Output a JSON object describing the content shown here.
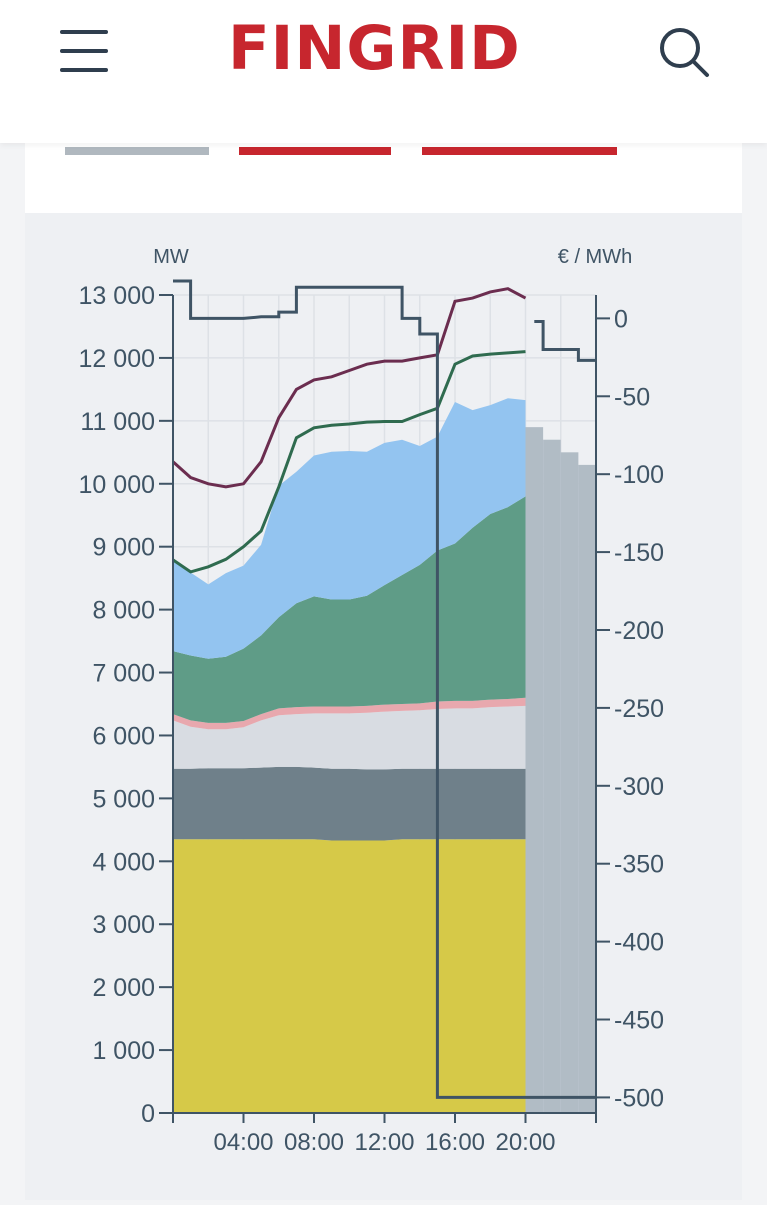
{
  "header": {
    "logo": "FINGRID",
    "menu_icon": "hamburger-menu-icon",
    "search_icon": "search-icon",
    "brand_color": "#c7262e"
  },
  "tabs": [
    {
      "color": "#b0b8bf"
    },
    {
      "color": "#c7262e"
    },
    {
      "color": "#c7262e"
    }
  ],
  "chart_data": {
    "type": "area",
    "left_axis_label": "MW",
    "right_axis_label": "€ / MWh",
    "ylim_left": [
      0,
      13000
    ],
    "ylim_right": [
      -510,
      15
    ],
    "yticks_left": [
      0,
      1000,
      2000,
      3000,
      4000,
      5000,
      6000,
      7000,
      8000,
      9000,
      10000,
      11000,
      12000,
      13000
    ],
    "yticks_left_labels": [
      "0",
      "1 000",
      "2 000",
      "3 000",
      "4 000",
      "5 000",
      "6 000",
      "7 000",
      "8 000",
      "9 000",
      "10 000",
      "11 000",
      "12 000",
      "13 000"
    ],
    "yticks_right": [
      0,
      -50,
      -100,
      -150,
      -200,
      -250,
      -300,
      -350,
      -400,
      -450,
      -500
    ],
    "x_tick_labels": [
      "04:00",
      "08:00",
      "12:00",
      "16:00",
      "20:00"
    ],
    "x_tick_hours": [
      4,
      8,
      12,
      16,
      20
    ],
    "xlim_hours": [
      0,
      24
    ],
    "x_hours": [
      0,
      1,
      2,
      3,
      4,
      5,
      6,
      7,
      8,
      9,
      10,
      11,
      12,
      13,
      14,
      15,
      16,
      17,
      18,
      19,
      20
    ],
    "stacked_series": [
      {
        "color": "#d6c948",
        "values": [
          4350,
          4350,
          4350,
          4350,
          4350,
          4350,
          4350,
          4350,
          4350,
          4330,
          4330,
          4330,
          4330,
          4350,
          4350,
          4350,
          4350,
          4350,
          4350,
          4350,
          4350
        ]
      },
      {
        "color": "#6f808a",
        "values": [
          1120,
          1120,
          1130,
          1130,
          1130,
          1140,
          1150,
          1150,
          1140,
          1140,
          1140,
          1130,
          1130,
          1120,
          1120,
          1120,
          1120,
          1120,
          1120,
          1120,
          1120
        ]
      },
      {
        "color": "#d8dce2",
        "values": [
          770,
          670,
          620,
          620,
          650,
          750,
          820,
          840,
          860,
          880,
          880,
          900,
          920,
          920,
          930,
          950,
          960,
          960,
          980,
          990,
          1000
        ]
      },
      {
        "color": "#e8a8ae",
        "values": [
          100,
          100,
          100,
          100,
          100,
          100,
          110,
          110,
          110,
          110,
          110,
          110,
          110,
          110,
          110,
          120,
          120,
          120,
          120,
          120,
          130
        ]
      },
      {
        "color": "#5f9c87",
        "values": [
          1000,
          1030,
          1020,
          1050,
          1150,
          1250,
          1450,
          1650,
          1750,
          1700,
          1700,
          1750,
          1900,
          2050,
          2200,
          2400,
          2500,
          2750,
          2950,
          3050,
          3200
        ]
      },
      {
        "color": "#93c4f0",
        "values": [
          1450,
          1320,
          1180,
          1330,
          1320,
          1440,
          2090,
          2090,
          2240,
          2350,
          2360,
          2290,
          2260,
          2150,
          1890,
          1810,
          2250,
          1870,
          1730,
          1730,
          1530
        ]
      }
    ],
    "total_line": {
      "color": "#2f6b4f",
      "values": [
        8790,
        8600,
        8680,
        8800,
        9000,
        9250,
        9950,
        10730,
        10890,
        10930,
        10950,
        10980,
        10990,
        10990,
        11100,
        11200,
        11900,
        12030,
        12060,
        12080,
        12100
      ]
    },
    "upper_line": {
      "color": "#6b2d4f",
      "values": [
        10350,
        10100,
        10000,
        9950,
        10000,
        10350,
        11050,
        11500,
        11650,
        11700,
        11800,
        11900,
        11950,
        11950,
        12000,
        12050,
        12900,
        12950,
        13050,
        13100,
        12950
      ]
    },
    "price_line": {
      "color": "#3f5465",
      "points": [
        [
          0,
          24
        ],
        [
          1,
          24
        ],
        [
          1,
          0
        ],
        [
          4,
          0
        ],
        [
          5,
          1
        ],
        [
          6,
          1
        ],
        [
          6,
          4
        ],
        [
          7,
          4
        ],
        [
          7,
          20
        ],
        [
          13,
          20
        ],
        [
          13,
          0
        ],
        [
          14,
          0
        ],
        [
          14,
          -10
        ],
        [
          15,
          -10
        ],
        [
          15,
          -500
        ],
        [
          24,
          -500
        ]
      ]
    },
    "forecast_price_line": {
      "color": "#3f5465",
      "points": [
        [
          20.5,
          -2
        ],
        [
          21,
          -2
        ],
        [
          21,
          -20
        ],
        [
          23,
          -20
        ],
        [
          23,
          -27
        ],
        [
          24,
          -27
        ]
      ]
    },
    "forecast_bars": {
      "color": "#b1bcc5",
      "hours": [
        20.5,
        21.5,
        22.5,
        23.5
      ],
      "values": [
        10900,
        10700,
        10500,
        10300
      ]
    }
  }
}
